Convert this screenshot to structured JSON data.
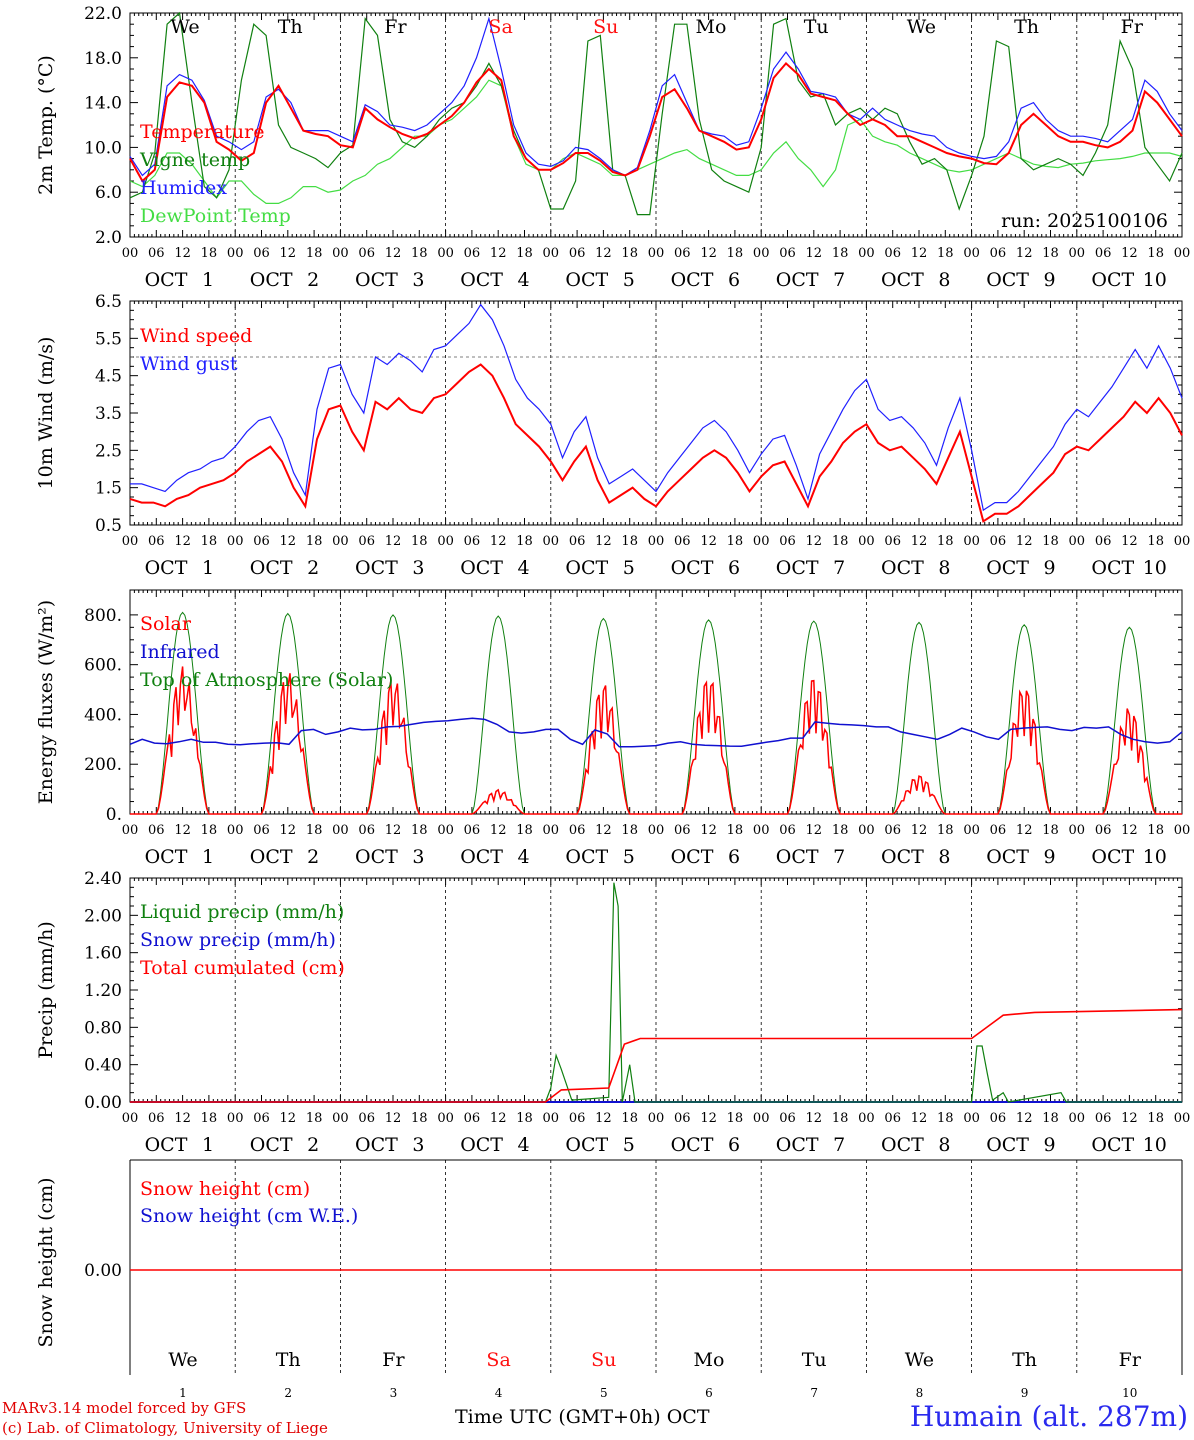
{
  "chart_data": [
    {
      "type": "line",
      "ylabel": "2m Temp. (°C)",
      "ylim": [
        2.0,
        22.0
      ],
      "yticks": [
        2.0,
        6.0,
        10.0,
        14.0,
        18.0,
        22.0
      ],
      "ytick_labels": [
        "2.0",
        "6.0",
        "10.0",
        "14.0",
        "18.0",
        "22.0"
      ],
      "grid": "vertical dashed at day boundaries",
      "annotation": "run: 2025100106",
      "series": [
        {
          "name": "Temperature",
          "color": "#ff0000",
          "values": [
            9.0,
            7.0,
            8.0,
            14.5,
            15.8,
            15.5,
            14.0,
            10.5,
            9.8,
            8.8,
            9.5,
            14.0,
            15.5,
            13.5,
            11.5,
            11.2,
            11.0,
            10.2,
            10.0,
            13.5,
            12.5,
            11.8,
            11.2,
            10.8,
            11.2,
            12.0,
            12.8,
            14.0,
            15.8,
            17.0,
            16.0,
            11.0,
            9.0,
            8.0,
            8.0,
            8.6,
            9.5,
            9.5,
            8.8,
            7.8,
            7.5,
            8.0,
            11.0,
            14.5,
            15.2,
            13.5,
            11.5,
            11.0,
            10.5,
            9.8,
            10.0,
            12.5,
            16.2,
            17.5,
            16.5,
            14.8,
            14.5,
            14.2,
            13.0,
            12.0,
            12.5,
            12.0,
            11.0,
            11.0,
            10.5,
            10.0,
            9.5,
            9.2,
            9.0,
            8.6,
            8.5,
            9.5,
            12.0,
            13.0,
            12.0,
            11.0,
            10.5,
            10.5,
            10.2,
            10.0,
            10.5,
            11.5,
            15.0,
            14.0,
            12.5,
            11.0
          ]
        },
        {
          "name": "Vigne temp",
          "color": "#108010",
          "values": [
            5.5,
            6.0,
            9.5,
            21.0,
            22.0,
            14.0,
            6.5,
            5.5,
            8.0,
            16.0,
            21.0,
            20.0,
            12.0,
            10.0,
            9.5,
            9.0,
            8.2,
            9.5,
            10.2,
            21.5,
            20.0,
            12.5,
            10.5,
            10.0,
            11.0,
            12.5,
            13.5,
            14.0,
            15.5,
            17.5,
            15.5,
            11.5,
            9.0,
            8.0,
            4.5,
            4.5,
            7.0,
            19.5,
            20.0,
            8.0,
            7.5,
            4.0,
            4.0,
            13.0,
            21.0,
            21.0,
            12.5,
            8.0,
            7.0,
            6.5,
            6.0,
            10.0,
            21.0,
            21.5,
            16.0,
            14.5,
            14.8,
            12.0,
            13.0,
            13.5,
            12.5,
            13.5,
            13.0,
            10.5,
            8.5,
            9.0,
            8.0,
            4.5,
            7.5,
            11.0,
            19.5,
            19.0,
            9.0,
            8.0,
            8.5,
            9.0,
            8.5,
            7.5,
            9.5,
            12.0,
            19.5,
            17.0,
            10.0,
            8.5,
            7.0,
            9.5
          ]
        },
        {
          "name": "Humidex",
          "color": "#2020ff",
          "values": [
            9.2,
            7.5,
            8.5,
            15.5,
            16.5,
            16.0,
            14.2,
            11.0,
            10.5,
            9.8,
            10.5,
            14.5,
            15.2,
            14.0,
            11.5,
            11.5,
            11.5,
            11.0,
            10.5,
            13.8,
            13.2,
            12.0,
            11.8,
            11.5,
            12.0,
            13.0,
            14.0,
            15.5,
            18.0,
            21.5,
            17.0,
            12.0,
            9.5,
            8.5,
            8.3,
            8.8,
            10.0,
            9.8,
            9.0,
            8.0,
            7.5,
            8.2,
            11.5,
            15.5,
            16.5,
            14.0,
            11.5,
            11.2,
            11.0,
            10.2,
            10.5,
            13.5,
            17.0,
            18.5,
            17.0,
            15.0,
            14.8,
            14.5,
            13.0,
            12.5,
            13.5,
            12.5,
            12.0,
            11.5,
            11.2,
            11.0,
            10.0,
            9.5,
            9.2,
            9.0,
            9.2,
            10.5,
            13.5,
            14.0,
            12.5,
            11.5,
            11.0,
            11.0,
            10.8,
            10.5,
            11.5,
            12.5,
            16.0,
            15.0,
            13.0,
            11.5
          ]
        },
        {
          "name": "DewPoint Temp",
          "color": "#44dd44",
          "values": [
            7.0,
            6.5,
            7.5,
            9.5,
            9.5,
            8.5,
            7.0,
            5.5,
            7.0,
            7.0,
            5.8,
            5.0,
            5.0,
            5.5,
            6.5,
            6.5,
            6.0,
            6.2,
            7.0,
            7.5,
            8.5,
            9.0,
            10.0,
            11.0,
            11.0,
            12.0,
            12.5,
            13.5,
            14.5,
            16.0,
            15.5,
            11.0,
            8.5,
            8.0,
            8.0,
            9.0,
            9.5,
            9.0,
            8.5,
            7.5,
            7.5,
            8.0,
            8.5,
            9.0,
            9.5,
            9.8,
            9.0,
            8.5,
            8.0,
            7.5,
            7.5,
            8.0,
            9.5,
            10.5,
            9.0,
            8.0,
            6.5,
            8.0,
            12.0,
            12.5,
            11.0,
            10.5,
            10.2,
            9.5,
            9.0,
            8.5,
            8.0,
            7.8,
            8.0,
            8.5,
            9.0,
            9.5,
            9.0,
            8.5,
            8.3,
            8.2,
            8.5,
            8.6,
            8.8,
            8.9,
            9.0,
            9.2,
            9.5,
            9.5,
            9.5,
            9.2
          ]
        }
      ]
    },
    {
      "type": "line",
      "ylabel": "10m Wind (m/s)",
      "ylim": [
        0.5,
        6.5
      ],
      "yticks": [
        0.5,
        1.5,
        2.5,
        3.5,
        4.5,
        5.5,
        6.5
      ],
      "ytick_labels": [
        "0.5",
        "1.5",
        "2.5",
        "3.5",
        "4.5",
        "5.5",
        "6.5"
      ],
      "reference_line": 5.0,
      "series": [
        {
          "name": "Wind speed",
          "color": "#ff0000",
          "values": [
            1.2,
            1.1,
            1.1,
            1.0,
            1.2,
            1.3,
            1.5,
            1.6,
            1.7,
            1.9,
            2.2,
            2.4,
            2.6,
            2.2,
            1.5,
            1.0,
            2.8,
            3.6,
            3.7,
            3.0,
            2.5,
            3.8,
            3.6,
            3.9,
            3.6,
            3.5,
            3.9,
            4.0,
            4.3,
            4.6,
            4.8,
            4.5,
            3.9,
            3.2,
            2.9,
            2.6,
            2.2,
            1.7,
            2.2,
            2.6,
            1.7,
            1.1,
            1.3,
            1.5,
            1.2,
            1.0,
            1.4,
            1.7,
            2.0,
            2.3,
            2.5,
            2.3,
            1.9,
            1.4,
            1.8,
            2.1,
            2.2,
            1.6,
            1.0,
            1.8,
            2.2,
            2.7,
            3.0,
            3.2,
            2.7,
            2.5,
            2.6,
            2.3,
            2.0,
            1.6,
            2.3,
            3.0,
            1.8,
            0.6,
            0.8,
            0.8,
            1.0,
            1.3,
            1.6,
            1.9,
            2.4,
            2.6,
            2.5,
            2.8,
            3.1,
            3.4,
            3.8,
            3.5,
            3.9,
            3.5,
            2.9
          ]
        },
        {
          "name": "Wind gust",
          "color": "#2020ff",
          "values": [
            1.6,
            1.6,
            1.5,
            1.4,
            1.7,
            1.9,
            2.0,
            2.2,
            2.3,
            2.6,
            3.0,
            3.3,
            3.4,
            2.8,
            1.9,
            1.3,
            3.6,
            4.7,
            4.8,
            4.0,
            3.5,
            5.0,
            4.8,
            5.1,
            4.9,
            4.6,
            5.2,
            5.3,
            5.6,
            5.9,
            6.4,
            6.0,
            5.3,
            4.4,
            3.9,
            3.6,
            3.2,
            2.3,
            3.0,
            3.4,
            2.3,
            1.6,
            1.8,
            2.0,
            1.7,
            1.4,
            1.9,
            2.3,
            2.7,
            3.1,
            3.3,
            3.0,
            2.5,
            1.9,
            2.4,
            2.8,
            2.9,
            2.1,
            1.2,
            2.4,
            3.0,
            3.6,
            4.1,
            4.4,
            3.6,
            3.3,
            3.4,
            3.1,
            2.7,
            2.1,
            3.1,
            3.9,
            2.5,
            0.9,
            1.1,
            1.1,
            1.4,
            1.8,
            2.2,
            2.6,
            3.2,
            3.6,
            3.4,
            3.8,
            4.2,
            4.7,
            5.2,
            4.7,
            5.3,
            4.7,
            3.9
          ]
        }
      ]
    },
    {
      "type": "line",
      "ylabel": "Energy fluxes (W/m²)",
      "ylim": [
        0,
        900
      ],
      "yticks": [
        0,
        200,
        400,
        600,
        800
      ],
      "ytick_labels": [
        "0.",
        "200.",
        "400.",
        "600.",
        "800."
      ],
      "series": [
        {
          "name": "Solar",
          "color": "#ff0000",
          "days": [
            1,
            2,
            3,
            4,
            5,
            6,
            7,
            8,
            9,
            10
          ],
          "daily_peak": [
            600,
            580,
            560,
            100,
            540,
            570,
            570,
            160,
            530,
            440
          ]
        },
        {
          "name": "Infrared",
          "color": "#1010d0",
          "values": [
            280,
            300,
            285,
            282,
            290,
            300,
            288,
            288,
            280,
            278,
            282,
            285,
            286,
            280,
            335,
            340,
            320,
            330,
            345,
            338,
            340,
            350,
            352,
            360,
            368,
            372,
            375,
            380,
            385,
            380,
            360,
            330,
            325,
            330,
            340,
            340,
            300,
            280,
            338,
            322,
            270,
            270,
            272,
            275,
            285,
            290,
            280,
            276,
            275,
            273,
            272,
            280,
            288,
            295,
            305,
            305,
            370,
            365,
            360,
            358,
            355,
            350,
            350,
            330,
            320,
            310,
            300,
            320,
            345,
            330,
            310,
            300,
            340,
            345,
            348,
            350,
            340,
            335,
            348,
            345,
            350,
            320,
            300,
            290,
            285,
            290,
            330
          ]
        },
        {
          "name": "Top of Atmosphere (Solar)",
          "color": "#108010",
          "days": [
            1,
            2,
            3,
            4,
            5,
            6,
            7,
            8,
            9,
            10
          ],
          "daily_peak": [
            810,
            805,
            800,
            795,
            785,
            780,
            775,
            770,
            760,
            750
          ]
        }
      ]
    },
    {
      "type": "line",
      "ylabel": "Precip (mm/h)",
      "ylim": [
        0.0,
        2.4
      ],
      "yticks": [
        0.0,
        0.4,
        0.8,
        1.2,
        1.6,
        2.0,
        2.4
      ],
      "ytick_labels": [
        "0.00",
        "0.40",
        "0.80",
        "1.20",
        "1.60",
        "2.00",
        "2.40"
      ],
      "series": [
        {
          "name": "Liquid precip (mm/h)",
          "color": "#108010",
          "points": [
            [
              3.95,
              0.0
            ],
            [
              4.0,
              0.15
            ],
            [
              4.05,
              0.5
            ],
            [
              4.1,
              0.35
            ],
            [
              4.2,
              0.02
            ],
            [
              4.55,
              0.05
            ],
            [
              4.6,
              2.35
            ],
            [
              4.64,
              2.1
            ],
            [
              4.68,
              0.0
            ],
            [
              4.75,
              0.4
            ],
            [
              4.8,
              0.0
            ],
            [
              8.0,
              0.0
            ],
            [
              8.05,
              0.6
            ],
            [
              8.1,
              0.6
            ],
            [
              8.15,
              0.3
            ],
            [
              8.2,
              0.02
            ],
            [
              8.3,
              0.1
            ],
            [
              8.35,
              0.0
            ],
            [
              8.85,
              0.1
            ],
            [
              8.9,
              0.0
            ]
          ]
        },
        {
          "name": "Snow precip (mm/h)",
          "color": "#1010d0",
          "values": "zero"
        },
        {
          "name": "Total cumulated (cm)",
          "color": "#ff0000",
          "points": [
            [
              0,
              0.0
            ],
            [
              3.95,
              0.0
            ],
            [
              4.1,
              0.13
            ],
            [
              4.55,
              0.15
            ],
            [
              4.7,
              0.62
            ],
            [
              4.85,
              0.68
            ],
            [
              8.0,
              0.68
            ],
            [
              8.3,
              0.93
            ],
            [
              8.6,
              0.96
            ],
            [
              10.0,
              0.99
            ]
          ]
        }
      ]
    },
    {
      "type": "line",
      "ylabel": "Snow height (cm)",
      "ytick_labels": [
        "0.00"
      ],
      "series": [
        {
          "name": "Snow height (cm)",
          "color": "#ff0000",
          "values": "zero"
        },
        {
          "name": "Snow height (cm W.E.)",
          "color": "#1010d0",
          "values": "zero"
        }
      ]
    }
  ],
  "x_axis": {
    "hour_labels": [
      "00",
      "06",
      "12",
      "18"
    ],
    "month_label": "OCT",
    "dates": [
      "1",
      "2",
      "3",
      "4",
      "5",
      "6",
      "7",
      "8",
      "9",
      "10"
    ],
    "weekdays": [
      "We",
      "Th",
      "Fr",
      "Sa",
      "Su",
      "Mo",
      "Tu",
      "We",
      "Th",
      "Fr"
    ],
    "weekend_color": "#ff1111",
    "weekday_color": "#000000",
    "weekend_index": [
      3,
      4
    ]
  },
  "footer": {
    "credit_line1": "MARv3.14 model forced by GFS",
    "credit_line2": "(c) Lab. of Climatology, University of Liege",
    "time_label": "Time UTC (GMT+0h) OCT",
    "station": "Humain (alt. 287m)"
  }
}
